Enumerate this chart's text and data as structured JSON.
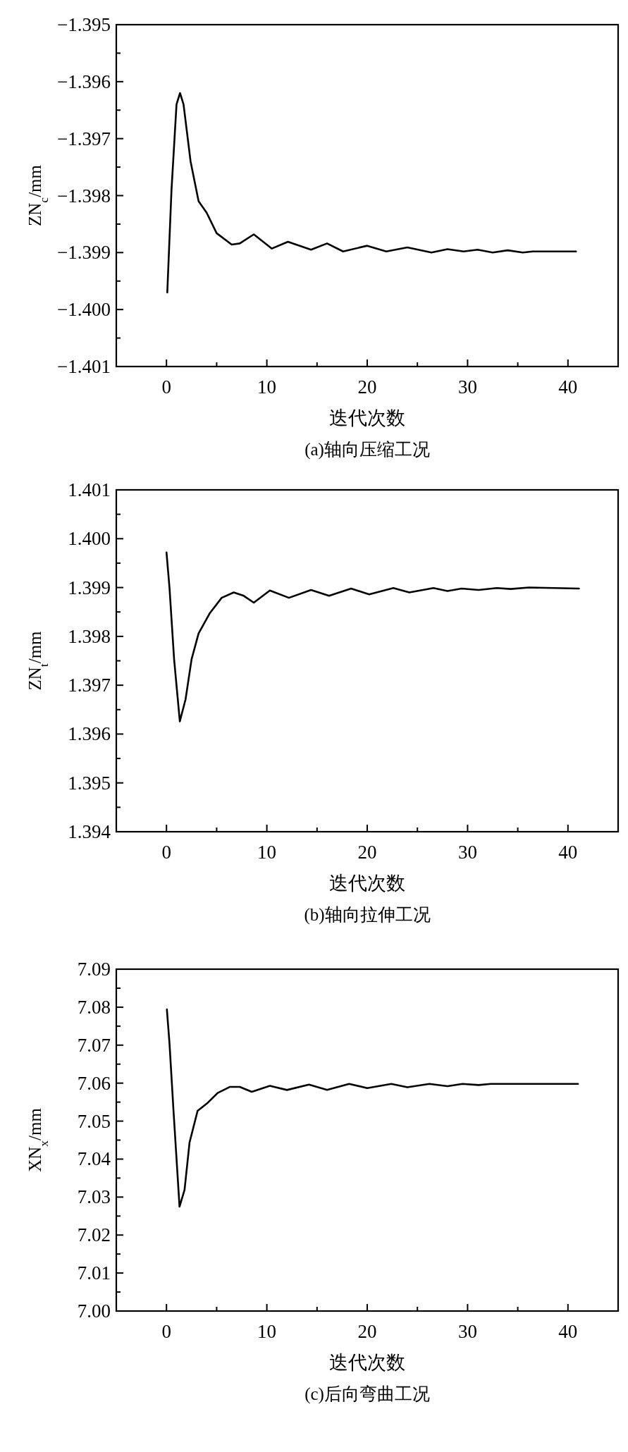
{
  "chart_data": [
    {
      "type": "line",
      "title": "(a)轴向压缩工况",
      "xlabel": "迭代次数",
      "ylabel": "ZN$_{c}$/mm",
      "x": [
        0.08,
        0.5,
        1.0,
        1.35,
        1.7,
        2.4,
        3.2,
        4.0,
        5.0,
        6.5,
        7.3,
        8.7,
        10.5,
        12.1,
        14.4,
        16.0,
        17.6,
        20.0,
        21.9,
        24.0,
        26.4,
        28.0,
        29.6,
        31.0,
        32.5,
        34.0,
        35.5,
        36.5,
        40.8
      ],
      "series": [
        {
          "color": "#000000",
          "values": [
            -1.3997,
            -1.3979,
            -1.3964,
            -1.3962,
            -1.3964,
            -1.3974,
            -1.3981,
            -1.3983,
            -1.39866,
            -1.39886,
            -1.39884,
            -1.39868,
            -1.39893,
            -1.39881,
            -1.39895,
            -1.39884,
            -1.39898,
            -1.39888,
            -1.39898,
            -1.39891,
            -1.399,
            -1.39894,
            -1.39898,
            -1.39895,
            -1.399,
            -1.39896,
            -1.399,
            -1.39898,
            -1.39898
          ]
        }
      ],
      "xlim": [
        -5,
        45
      ],
      "xticks": [
        0,
        {
          "value": 5,
          "label": null
        },
        10,
        {
          "value": 15,
          "label": null
        },
        20,
        {
          "value": 25,
          "label": null
        },
        30,
        {
          "value": 35,
          "label": null
        },
        40
      ],
      "ylim": [
        -1.401,
        -1.395
      ],
      "yticks": [
        {
          "value": -1.401,
          "label": "−1.401"
        },
        {
          "value": -1.4005,
          "label": null
        },
        {
          "value": -1.4,
          "label": "−1.400"
        },
        {
          "value": -1.3995,
          "label": null
        },
        {
          "value": -1.399,
          "label": "−1.399"
        },
        {
          "value": -1.3985,
          "label": null
        },
        {
          "value": -1.398,
          "label": "−1.398"
        },
        {
          "value": -1.3975,
          "label": null
        },
        {
          "value": -1.397,
          "label": "−1.397"
        },
        {
          "value": -1.3965,
          "label": null
        },
        {
          "value": -1.396,
          "label": "−1.396"
        },
        {
          "value": -1.3955,
          "label": null
        },
        {
          "value": -1.395,
          "label": "−1.395"
        }
      ]
    },
    {
      "type": "line",
      "title": "(b)轴向拉伸工况",
      "xlabel": "迭代次数",
      "ylabel": "ZN$_{t}$/mm",
      "x": [
        0,
        0.3,
        0.76,
        1.33,
        1.9,
        2.5,
        3.2,
        4.3,
        5.5,
        6.7,
        7.7,
        8.7,
        10.3,
        12.2,
        14.4,
        16.2,
        18.4,
        20.2,
        22.6,
        24.2,
        26.6,
        28.0,
        29.4,
        31.1,
        32.9,
        34.3,
        36.1,
        41.1
      ],
      "series": [
        {
          "color": "#000000",
          "values": [
            1.39972,
            1.399,
            1.39753,
            1.39626,
            1.39671,
            1.39753,
            1.39806,
            1.39847,
            1.39879,
            1.3989,
            1.39883,
            1.39869,
            1.39894,
            1.39879,
            1.39895,
            1.39883,
            1.39898,
            1.39886,
            1.39899,
            1.3989,
            1.39899,
            1.39893,
            1.39898,
            1.39895,
            1.39899,
            1.39897,
            1.399,
            1.39898
          ]
        }
      ],
      "xlim": [
        -5,
        45
      ],
      "xticks": [
        0,
        {
          "value": 5,
          "label": null
        },
        10,
        {
          "value": 15,
          "label": null
        },
        20,
        {
          "value": 25,
          "label": null
        },
        30,
        {
          "value": 35,
          "label": null
        },
        40
      ],
      "ylim": [
        1.394,
        1.401
      ],
      "yticks": [
        {
          "value": 1.394,
          "label": "1.394"
        },
        {
          "value": 1.3945,
          "label": null
        },
        {
          "value": 1.395,
          "label": "1.395"
        },
        {
          "value": 1.3955,
          "label": null
        },
        {
          "value": 1.396,
          "label": "1.396"
        },
        {
          "value": 1.3965,
          "label": null
        },
        {
          "value": 1.397,
          "label": "1.397"
        },
        {
          "value": 1.3975,
          "label": null
        },
        {
          "value": 1.398,
          "label": "1.398"
        },
        {
          "value": 1.3985,
          "label": null
        },
        {
          "value": 1.399,
          "label": "1.399"
        },
        {
          "value": 1.3995,
          "label": null
        },
        {
          "value": 1.4,
          "label": "1.400"
        },
        {
          "value": 1.4005,
          "label": null
        },
        {
          "value": 1.401,
          "label": "1.401"
        }
      ]
    },
    {
      "type": "line",
      "title": "(c)后向弯曲工况",
      "xlabel": "迭代次数",
      "ylabel": "XN$_{x}$/mm",
      "x": [
        0.04,
        0.3,
        0.7,
        1.3,
        1.8,
        2.3,
        3.1,
        4.1,
        5.1,
        6.3,
        7.3,
        8.5,
        10.3,
        12.0,
        14.2,
        16.0,
        18.2,
        20.0,
        22.4,
        24.0,
        26.2,
        28.0,
        29.5,
        31.1,
        32.3,
        41.0
      ],
      "series": [
        {
          "color": "#000000",
          "values": [
            7.0794,
            7.0705,
            7.0527,
            7.0275,
            7.0319,
            7.0444,
            7.0527,
            7.0548,
            7.0574,
            7.059,
            7.059,
            7.0577,
            7.0593,
            7.0582,
            7.0596,
            7.0582,
            7.0598,
            7.0587,
            7.0598,
            7.0589,
            7.0598,
            7.0592,
            7.0598,
            7.0595,
            7.0598,
            7.0598
          ]
        }
      ],
      "xlim": [
        -5,
        45
      ],
      "xticks": [
        0,
        {
          "value": 5,
          "label": null
        },
        10,
        {
          "value": 15,
          "label": null
        },
        20,
        {
          "value": 25,
          "label": null
        },
        30,
        {
          "value": 35,
          "label": null
        },
        40
      ],
      "ylim": [
        7.0,
        7.09
      ],
      "yticks": [
        {
          "value": 7.0,
          "label": "7.00"
        },
        {
          "value": 7.005,
          "label": null
        },
        {
          "value": 7.01,
          "label": "7.01"
        },
        {
          "value": 7.015,
          "label": null
        },
        {
          "value": 7.02,
          "label": "7.02"
        },
        {
          "value": 7.025,
          "label": null
        },
        {
          "value": 7.03,
          "label": "7.03"
        },
        {
          "value": 7.035,
          "label": null
        },
        {
          "value": 7.04,
          "label": "7.04"
        },
        {
          "value": 7.045,
          "label": null
        },
        {
          "value": 7.05,
          "label": "7.05"
        },
        {
          "value": 7.055,
          "label": null
        },
        {
          "value": 7.06,
          "label": "7.06"
        },
        {
          "value": 7.065,
          "label": null
        },
        {
          "value": 7.07,
          "label": "7.07"
        },
        {
          "value": 7.075,
          "label": null
        },
        {
          "value": 7.08,
          "label": "7.08"
        },
        {
          "value": 7.085,
          "label": null
        },
        {
          "value": 7.09,
          "label": "7.09"
        }
      ]
    }
  ]
}
